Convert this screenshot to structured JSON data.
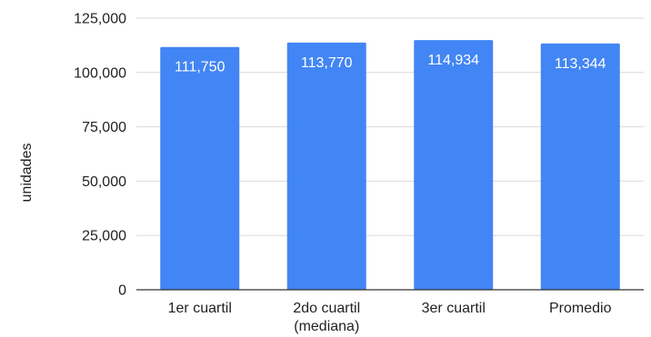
{
  "chart_data": {
    "type": "bar",
    "title": "",
    "xlabel": "",
    "ylabel": "unidades",
    "ylim": [
      0,
      125000
    ],
    "y_ticks": [
      0,
      25000,
      50000,
      75000,
      100000,
      125000
    ],
    "y_tick_labels": [
      "0",
      "25,000",
      "50,000",
      "75,000",
      "100,000",
      "125,000"
    ],
    "categories": [
      [
        "1er cuartil"
      ],
      [
        "2do cuartil",
        "(mediana)"
      ],
      [
        "3er cuartil"
      ],
      [
        "Promedio"
      ]
    ],
    "values": [
      111750,
      113770,
      114934,
      113344
    ],
    "value_labels": [
      "111,750",
      "113,770",
      "114,934",
      "113,344"
    ],
    "grid": true,
    "colors": {
      "bar": "#4285F4",
      "grid": "#d9d9d9",
      "axis": "#333333",
      "text": "#222222",
      "value_label": "#ffffff"
    }
  }
}
